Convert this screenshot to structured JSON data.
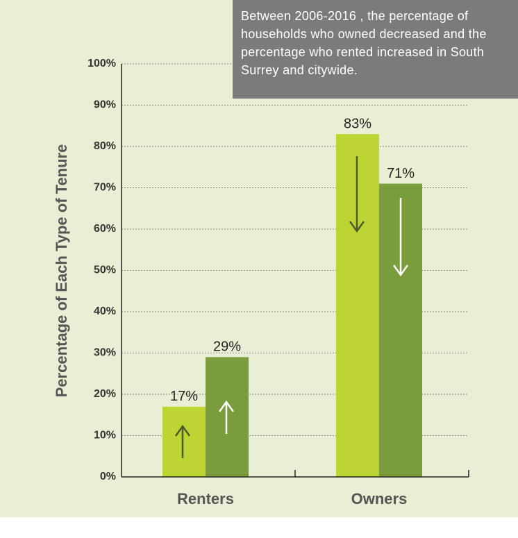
{
  "chart_data": {
    "type": "bar",
    "annotation": "Between 2006-2016 , the percentage of households who owned decreased and the percentage who rented increased in South Surrey and citywide.",
    "ylabel": "Percentage of Each Type of Tenure",
    "categories": [
      "Renters",
      "Owners"
    ],
    "series": [
      {
        "color": "#bed432",
        "values": [
          17,
          83
        ],
        "value_labels": [
          "17%",
          "83%"
        ]
      },
      {
        "color": "#7b9c3c",
        "values": [
          29,
          71
        ],
        "value_labels": [
          "29%",
          "71%"
        ]
      }
    ],
    "ylim": [
      0,
      100
    ],
    "yticks": [
      {
        "value": 0,
        "label": "0%"
      },
      {
        "value": 10,
        "label": "10%"
      },
      {
        "value": 20,
        "label": "20%"
      },
      {
        "value": 30,
        "label": "30%"
      },
      {
        "value": 40,
        "label": "40%"
      },
      {
        "value": 50,
        "label": "50%"
      },
      {
        "value": 60,
        "label": "60%"
      },
      {
        "value": 70,
        "label": "70%"
      },
      {
        "value": 80,
        "label": "80%"
      },
      {
        "value": 90,
        "label": "90%"
      },
      {
        "value": 100,
        "label": "100%"
      }
    ],
    "grid": true
  }
}
